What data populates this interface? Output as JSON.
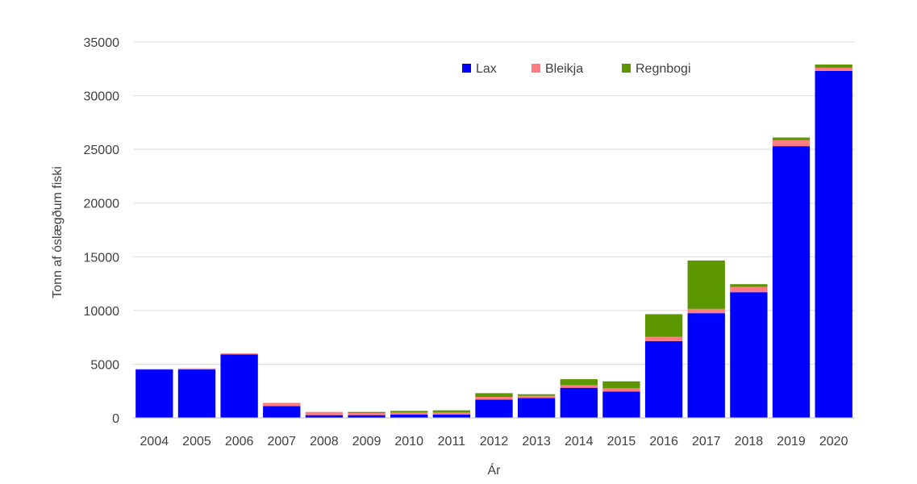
{
  "chart_data": {
    "type": "bar",
    "stacked": true,
    "title": "",
    "xlabel": "Ár",
    "ylabel": "Tonn af óslægðum fiski",
    "ylim": [
      0,
      35000
    ],
    "yticks": [
      0,
      5000,
      10000,
      15000,
      20000,
      25000,
      30000,
      35000
    ],
    "ytick_labels": [
      "0",
      "5000",
      "10000",
      "15000",
      "20000",
      "25000",
      "30000",
      "35000"
    ],
    "grid": true,
    "legend_position": "top-center",
    "categories": [
      "2004",
      "2005",
      "2006",
      "2007",
      "2008",
      "2009",
      "2010",
      "2011",
      "2012",
      "2013",
      "2014",
      "2015",
      "2016",
      "2017",
      "2018",
      "2019",
      "2020"
    ],
    "series": [
      {
        "name": "Lax",
        "color": "#0000ff",
        "values": [
          4500,
          4500,
          5900,
          1100,
          250,
          250,
          300,
          300,
          1700,
          1850,
          2800,
          2450,
          7150,
          9750,
          11700,
          25300,
          32300
        ]
      },
      {
        "name": "Bleikja",
        "color": "#ff7c80",
        "values": [
          50,
          100,
          100,
          300,
          300,
          200,
          200,
          200,
          250,
          200,
          250,
          300,
          400,
          400,
          500,
          550,
          300
        ]
      },
      {
        "name": "Regnbogi",
        "color": "#5c9600",
        "values": [
          0,
          0,
          0,
          0,
          0,
          100,
          150,
          200,
          350,
          150,
          550,
          650,
          2100,
          4500,
          250,
          250,
          300
        ]
      }
    ]
  }
}
